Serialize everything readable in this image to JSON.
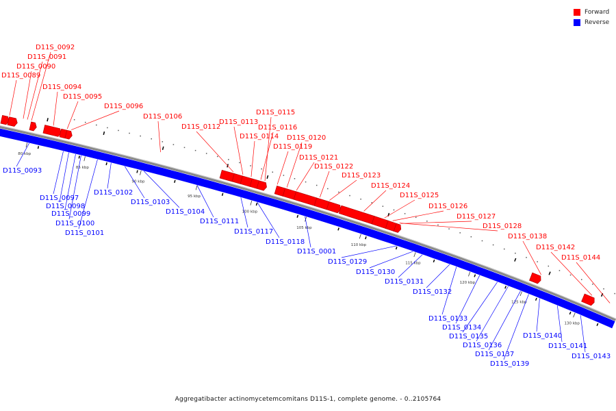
{
  "caption": "Aggregatibacter actinomycetemcomitans D11S-1, complete genome. - 0..2105764",
  "legend": [
    {
      "label": "Forward",
      "color": "#ff0000"
    },
    {
      "label": "Reverse",
      "color": "#0000ff"
    }
  ],
  "colors": {
    "forward": "#ff0000",
    "reverse": "#0000ff",
    "backbone": "#888888"
  },
  "scale_ticks": [
    "80 kbp",
    "85 kbp",
    "90 kbp",
    "95 kbp",
    "100 kbp",
    "105 kbp",
    "110 kbp",
    "115 kbp",
    "120 kbp",
    "125 kbp",
    "130 kbp"
  ],
  "forward_genes": [
    "D11S_0092",
    "D11S_0091",
    "D11S_0090",
    "D11S_0089",
    "D11S_0094",
    "D11S_0095",
    "D11S_0096",
    "D11S_0106",
    "D11S_0115",
    "D11S_0113",
    "D11S_0112",
    "D11S_0116",
    "D11S_0114",
    "D11S_0120",
    "D11S_0119",
    "D11S_0121",
    "D11S_0122",
    "D11S_0123",
    "D11S_0124",
    "D11S_0125",
    "D11S_0126",
    "D11S_0127",
    "D11S_0128",
    "D11S_0138",
    "D11S_0142",
    "D11S_0144"
  ],
  "reverse_genes": [
    "D11S_0093",
    "D11S_0097",
    "D11S_0098",
    "D11S_0099",
    "D11S_0100",
    "D11S_0101",
    "D11S_0102",
    "D11S_0103",
    "D11S_0104",
    "D11S_0111",
    "D11S_0117",
    "D11S_0118",
    "D11S_0001",
    "D11S_0129",
    "D11S_0130",
    "D11S_0131",
    "D11S_0132",
    "D11S_0133",
    "D11S_0134",
    "D11S_0135",
    "D11S_0136",
    "D11S_0137",
    "D11S_0139",
    "D11S_0140",
    "D11S_0141",
    "D11S_0143"
  ]
}
